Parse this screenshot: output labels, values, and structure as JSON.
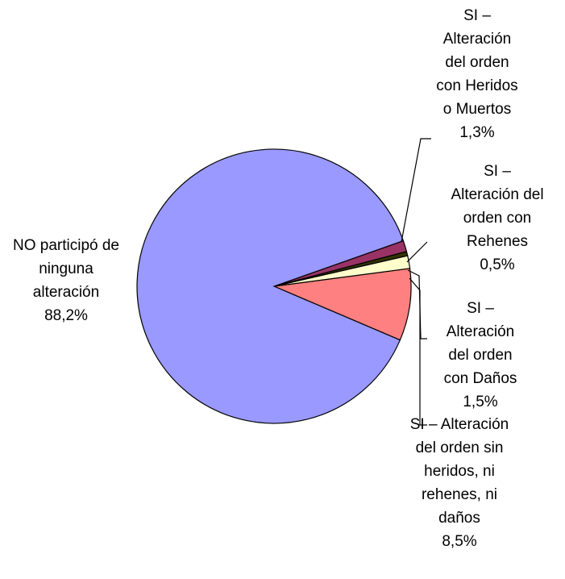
{
  "chart_data": {
    "type": "pie",
    "categories": [
      "NO participó de ninguna alteración",
      "SI – Alteración del orden con Heridos o Muertos",
      "SI – Alteración del orden con Rehenes",
      "SI – Alteración del orden con Daños",
      "SI – Alteración del orden sin heridos, ni rehenes, ni daños"
    ],
    "values": [
      88.2,
      1.3,
      0.5,
      1.5,
      8.5
    ],
    "value_labels": [
      "88,2%",
      "1,3%",
      "0,5%",
      "1,5%",
      "8,5%"
    ],
    "colors": [
      "#9999ff",
      "#993366",
      "#333300",
      "#ffffcc",
      "#ff8080"
    ]
  }
}
